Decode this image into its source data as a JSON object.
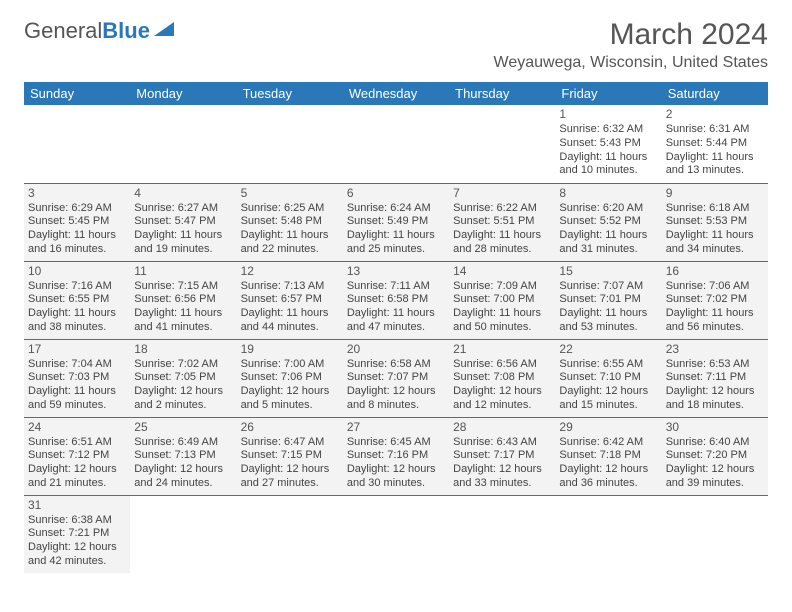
{
  "logo": {
    "text1": "General",
    "text2": "Blue"
  },
  "title": "March 2024",
  "location": "Weyauwega, Wisconsin, United States",
  "columns": [
    "Sunday",
    "Monday",
    "Tuesday",
    "Wednesday",
    "Thursday",
    "Friday",
    "Saturday"
  ],
  "colors": {
    "header_bg": "#2a78b8",
    "header_fg": "#ffffff",
    "row_alt_bg": "#f3f3f3",
    "rule": "#2a78b8"
  },
  "weeks": [
    [
      null,
      null,
      null,
      null,
      null,
      {
        "n": "1",
        "sr": "Sunrise: 6:32 AM",
        "ss": "Sunset: 5:43 PM",
        "dl": "Daylight: 11 hours and 10 minutes."
      },
      {
        "n": "2",
        "sr": "Sunrise: 6:31 AM",
        "ss": "Sunset: 5:44 PM",
        "dl": "Daylight: 11 hours and 13 minutes."
      }
    ],
    [
      {
        "n": "3",
        "sr": "Sunrise: 6:29 AM",
        "ss": "Sunset: 5:45 PM",
        "dl": "Daylight: 11 hours and 16 minutes."
      },
      {
        "n": "4",
        "sr": "Sunrise: 6:27 AM",
        "ss": "Sunset: 5:47 PM",
        "dl": "Daylight: 11 hours and 19 minutes."
      },
      {
        "n": "5",
        "sr": "Sunrise: 6:25 AM",
        "ss": "Sunset: 5:48 PM",
        "dl": "Daylight: 11 hours and 22 minutes."
      },
      {
        "n": "6",
        "sr": "Sunrise: 6:24 AM",
        "ss": "Sunset: 5:49 PM",
        "dl": "Daylight: 11 hours and 25 minutes."
      },
      {
        "n": "7",
        "sr": "Sunrise: 6:22 AM",
        "ss": "Sunset: 5:51 PM",
        "dl": "Daylight: 11 hours and 28 minutes."
      },
      {
        "n": "8",
        "sr": "Sunrise: 6:20 AM",
        "ss": "Sunset: 5:52 PM",
        "dl": "Daylight: 11 hours and 31 minutes."
      },
      {
        "n": "9",
        "sr": "Sunrise: 6:18 AM",
        "ss": "Sunset: 5:53 PM",
        "dl": "Daylight: 11 hours and 34 minutes."
      }
    ],
    [
      {
        "n": "10",
        "sr": "Sunrise: 7:16 AM",
        "ss": "Sunset: 6:55 PM",
        "dl": "Daylight: 11 hours and 38 minutes."
      },
      {
        "n": "11",
        "sr": "Sunrise: 7:15 AM",
        "ss": "Sunset: 6:56 PM",
        "dl": "Daylight: 11 hours and 41 minutes."
      },
      {
        "n": "12",
        "sr": "Sunrise: 7:13 AM",
        "ss": "Sunset: 6:57 PM",
        "dl": "Daylight: 11 hours and 44 minutes."
      },
      {
        "n": "13",
        "sr": "Sunrise: 7:11 AM",
        "ss": "Sunset: 6:58 PM",
        "dl": "Daylight: 11 hours and 47 minutes."
      },
      {
        "n": "14",
        "sr": "Sunrise: 7:09 AM",
        "ss": "Sunset: 7:00 PM",
        "dl": "Daylight: 11 hours and 50 minutes."
      },
      {
        "n": "15",
        "sr": "Sunrise: 7:07 AM",
        "ss": "Sunset: 7:01 PM",
        "dl": "Daylight: 11 hours and 53 minutes."
      },
      {
        "n": "16",
        "sr": "Sunrise: 7:06 AM",
        "ss": "Sunset: 7:02 PM",
        "dl": "Daylight: 11 hours and 56 minutes."
      }
    ],
    [
      {
        "n": "17",
        "sr": "Sunrise: 7:04 AM",
        "ss": "Sunset: 7:03 PM",
        "dl": "Daylight: 11 hours and 59 minutes."
      },
      {
        "n": "18",
        "sr": "Sunrise: 7:02 AM",
        "ss": "Sunset: 7:05 PM",
        "dl": "Daylight: 12 hours and 2 minutes."
      },
      {
        "n": "19",
        "sr": "Sunrise: 7:00 AM",
        "ss": "Sunset: 7:06 PM",
        "dl": "Daylight: 12 hours and 5 minutes."
      },
      {
        "n": "20",
        "sr": "Sunrise: 6:58 AM",
        "ss": "Sunset: 7:07 PM",
        "dl": "Daylight: 12 hours and 8 minutes."
      },
      {
        "n": "21",
        "sr": "Sunrise: 6:56 AM",
        "ss": "Sunset: 7:08 PM",
        "dl": "Daylight: 12 hours and 12 minutes."
      },
      {
        "n": "22",
        "sr": "Sunrise: 6:55 AM",
        "ss": "Sunset: 7:10 PM",
        "dl": "Daylight: 12 hours and 15 minutes."
      },
      {
        "n": "23",
        "sr": "Sunrise: 6:53 AM",
        "ss": "Sunset: 7:11 PM",
        "dl": "Daylight: 12 hours and 18 minutes."
      }
    ],
    [
      {
        "n": "24",
        "sr": "Sunrise: 6:51 AM",
        "ss": "Sunset: 7:12 PM",
        "dl": "Daylight: 12 hours and 21 minutes."
      },
      {
        "n": "25",
        "sr": "Sunrise: 6:49 AM",
        "ss": "Sunset: 7:13 PM",
        "dl": "Daylight: 12 hours and 24 minutes."
      },
      {
        "n": "26",
        "sr": "Sunrise: 6:47 AM",
        "ss": "Sunset: 7:15 PM",
        "dl": "Daylight: 12 hours and 27 minutes."
      },
      {
        "n": "27",
        "sr": "Sunrise: 6:45 AM",
        "ss": "Sunset: 7:16 PM",
        "dl": "Daylight: 12 hours and 30 minutes."
      },
      {
        "n": "28",
        "sr": "Sunrise: 6:43 AM",
        "ss": "Sunset: 7:17 PM",
        "dl": "Daylight: 12 hours and 33 minutes."
      },
      {
        "n": "29",
        "sr": "Sunrise: 6:42 AM",
        "ss": "Sunset: 7:18 PM",
        "dl": "Daylight: 12 hours and 36 minutes."
      },
      {
        "n": "30",
        "sr": "Sunrise: 6:40 AM",
        "ss": "Sunset: 7:20 PM",
        "dl": "Daylight: 12 hours and 39 minutes."
      }
    ],
    [
      {
        "n": "31",
        "sr": "Sunrise: 6:38 AM",
        "ss": "Sunset: 7:21 PM",
        "dl": "Daylight: 12 hours and 42 minutes."
      },
      null,
      null,
      null,
      null,
      null,
      null
    ]
  ]
}
